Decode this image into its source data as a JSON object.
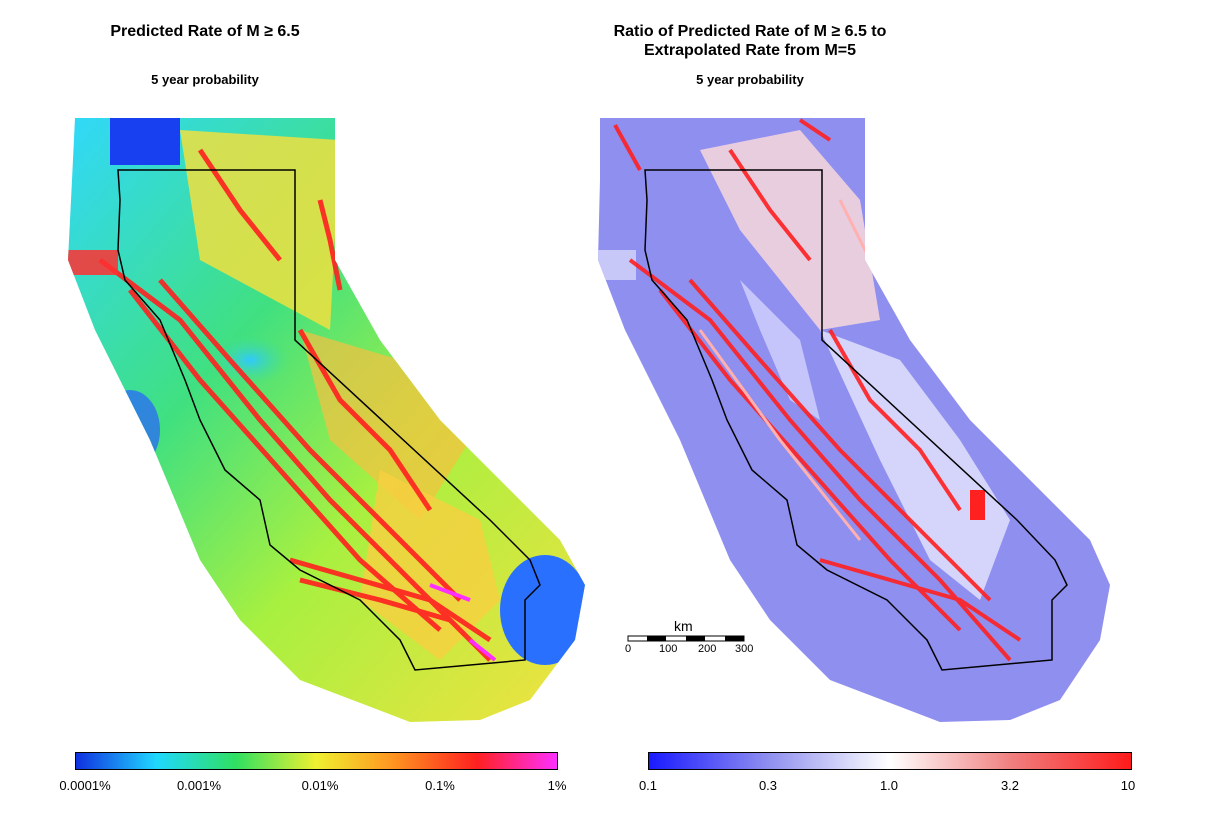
{
  "left_panel": {
    "title": "Predicted Rate of M ≥ 6.5",
    "subtitle": "5 year probability",
    "colorbar": {
      "colors": [
        "#1030e0",
        "#20d8ff",
        "#30e060",
        "#f0f030",
        "#ff9020",
        "#ff2020",
        "#ff30ff"
      ],
      "ticks": [
        "0.0001%",
        "0.001%",
        "0.01%",
        "0.1%",
        "1%"
      ]
    }
  },
  "right_panel": {
    "title_line1": "Ratio of Predicted Rate of M ≥ 6.5 to",
    "title_line2": "Extrapolated Rate from M=5",
    "subtitle": "5 year probability",
    "colorbar": {
      "colors": [
        "#1a1aff",
        "#9090f0",
        "#ffffff",
        "#f08080",
        "#ff1a1a"
      ],
      "ticks": [
        "0.1",
        "0.3",
        "1.0",
        "3.2",
        "10"
      ]
    }
  },
  "scale_bar": {
    "unit": "km",
    "ticks": [
      "0",
      "100",
      "200",
      "300"
    ]
  }
}
